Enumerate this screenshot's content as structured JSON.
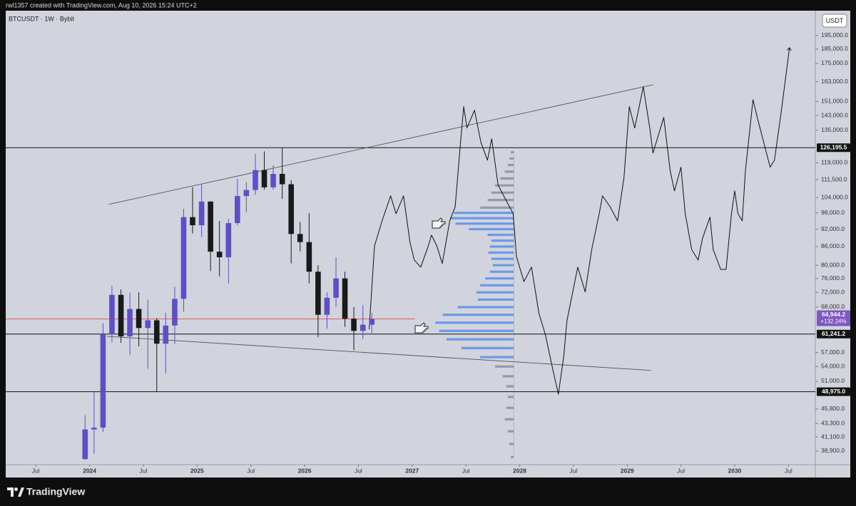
{
  "header": {
    "attribution": "rwl1357 created with TradingView.com, Aug 10, 2026 15:24 UTC+2",
    "symbol": "BTCUSDT · 1W · Bybit",
    "currency": "USDT"
  },
  "footer": {
    "brand": "TradingView"
  },
  "chart_data": {
    "type": "candlestick",
    "log_scale": true,
    "grid": false,
    "xlim": [
      2023.22,
      2030.75
    ],
    "ylim": [
      36900,
      214700
    ],
    "xticks": [
      {
        "value": 2023.5,
        "label": "Jul"
      },
      2024,
      {
        "value": 2024.5,
        "label": "Jul"
      },
      2025,
      {
        "value": 2025.5,
        "label": "Jul"
      },
      2026,
      {
        "value": 2026.5,
        "label": "Jul"
      },
      2027,
      {
        "value": 2027.5,
        "label": "Jul"
      },
      2028,
      {
        "value": 2028.5,
        "label": "Jul"
      },
      2029,
      {
        "value": 2029.5,
        "label": "Jul"
      },
      2030,
      {
        "value": 2030.5,
        "label": "Jul"
      }
    ],
    "yticks": [
      {
        "value": 195000,
        "label": "195,000.0"
      },
      {
        "value": 185000,
        "label": "185,000.0"
      },
      {
        "value": 175000,
        "label": "175,000.0"
      },
      {
        "value": 163000,
        "label": "163,000.0"
      },
      {
        "value": 151000,
        "label": "151,000.0"
      },
      {
        "value": 143000,
        "label": "143,000.0"
      },
      {
        "value": 135000,
        "label": "135,000.0"
      },
      {
        "value": 119000,
        "label": "119,000.0"
      },
      {
        "value": 111500,
        "label": "111,500.0"
      },
      {
        "value": 104000,
        "label": "104,000.0"
      },
      {
        "value": 98000,
        "label": "98,000.0"
      },
      {
        "value": 92000,
        "label": "92,000.0"
      },
      {
        "value": 86000,
        "label": "86,000.0"
      },
      {
        "value": 80000,
        "label": "80,000.0"
      },
      {
        "value": 76000,
        "label": "76,000.0"
      },
      {
        "value": 72000,
        "label": "72,000.0"
      },
      {
        "value": 68000,
        "label": "68,000.0"
      },
      {
        "value": 57000,
        "label": "57,000.0"
      },
      {
        "value": 54000,
        "label": "54,000.0"
      },
      {
        "value": 51000,
        "label": "51,000.0"
      },
      {
        "value": 45800,
        "label": "45,800.0"
      },
      {
        "value": 43300,
        "label": "43,300.0"
      },
      {
        "value": 41100,
        "label": "41,100.0"
      },
      {
        "value": 38900,
        "label": "38,900.0"
      }
    ],
    "x": [
      2023.958,
      2024.042,
      2024.125,
      2024.208,
      2024.292,
      2024.375,
      2024.458,
      2024.542,
      2024.625,
      2024.708,
      2024.792,
      2024.875,
      2024.958,
      2025.042,
      2025.125,
      2025.208,
      2025.292,
      2025.375,
      2025.458,
      2025.542,
      2025.625,
      2025.708,
      2025.792,
      2025.875,
      2025.958,
      2026.042,
      2026.125,
      2026.208,
      2026.292,
      2026.375,
      2026.458,
      2026.542,
      2026.625
    ],
    "open": [
      37700,
      42300,
      42600,
      61200,
      71300,
      60700,
      67500,
      62700,
      64600,
      59000,
      63300,
      70200,
      96400,
      93400,
      102400,
      84300,
      82500,
      94200,
      104600,
      107100,
      115700,
      108200,
      114000,
      109500,
      90300,
      87500,
      78000,
      66000,
      70500,
      76000,
      65000,
      62000,
      63500
    ],
    "high": [
      44700,
      48900,
      63900,
      73800,
      72800,
      71900,
      72000,
      70000,
      65100,
      66500,
      73600,
      99600,
      108300,
      109400,
      102500,
      95000,
      95800,
      111900,
      110400,
      123200,
      124400,
      117900,
      126195.5,
      111200,
      94600,
      97900,
      80000,
      72000,
      82500,
      78000,
      68000,
      68500,
      66500
    ],
    "low": [
      37600,
      38500,
      41900,
      59300,
      59200,
      56500,
      58400,
      53500,
      49000,
      52600,
      58900,
      66800,
      90500,
      89200,
      78200,
      76600,
      74500,
      93300,
      98200,
      105100,
      107300,
      107200,
      103500,
      80600,
      84400,
      74500,
      60500,
      62500,
      68000,
      63000,
      57500,
      60000,
      61500
    ],
    "close": [
      42300,
      42600,
      61200,
      71300,
      60700,
      67500,
      62700,
      64600,
      59000,
      63300,
      70200,
      96400,
      93400,
      102400,
      84300,
      82500,
      94200,
      104600,
      107100,
      115700,
      108200,
      114000,
      109500,
      90300,
      87500,
      78000,
      66000,
      70500,
      76000,
      65000,
      62000,
      63500,
      64944.2
    ],
    "up_color": "#5e4fc7",
    "down_color": "#1a1a1a",
    "projection": {
      "color": "#111111",
      "x": [
        2026.6,
        2026.65,
        2026.72,
        2026.8,
        2026.85,
        2026.92,
        2026.98,
        2027.02,
        2027.08,
        2027.15,
        2027.18,
        2027.23,
        2027.28,
        2027.35,
        2027.4,
        2027.45,
        2027.48,
        2027.51,
        2027.58,
        2027.64,
        2027.7,
        2027.74,
        2027.8,
        2027.87,
        2027.94,
        2027.97,
        2028.04,
        2028.11,
        2028.18,
        2028.24,
        2028.31,
        2028.36,
        2028.41,
        2028.44,
        2028.54,
        2028.61,
        2028.67,
        2028.74,
        2028.77,
        2028.84,
        2028.91,
        2028.97,
        2029.02,
        2029.07,
        2029.15,
        2029.21,
        2029.24,
        2029.29,
        2029.34,
        2029.4,
        2029.44,
        2029.5,
        2029.54,
        2029.6,
        2029.66,
        2029.7,
        2029.77,
        2029.8,
        2029.87,
        2029.92,
        2029.97,
        2030.0,
        2030.03,
        2030.07,
        2030.1,
        2030.17,
        2030.21,
        2030.27,
        2030.33,
        2030.37,
        2030.43,
        2030.51
      ],
      "values": [
        62400,
        86200,
        95000,
        104700,
        97700,
        104700,
        87500,
        81600,
        79400,
        86200,
        89900,
        86200,
        80500,
        95000,
        100400,
        128800,
        148000,
        136200,
        145900,
        128800,
        120200,
        130600,
        109100,
        103200,
        97700,
        82700,
        75100,
        79400,
        66300,
        61000,
        53200,
        48500,
        56200,
        64500,
        79400,
        72100,
        85000,
        97700,
        104700,
        100400,
        95000,
        112200,
        148000,
        136200,
        159800,
        136200,
        123600,
        132400,
        141900,
        115400,
        106700,
        117000,
        97700,
        85000,
        81600,
        88700,
        96400,
        85000,
        78700,
        78700,
        97700,
        106700,
        97700,
        95000,
        115400,
        152000,
        141900,
        128800,
        117000,
        120200,
        143900,
        186000
      ]
    },
    "trend_lines": [
      {
        "x": [
          2024.18,
          2029.24
        ],
        "values": [
          101300,
          161100
        ]
      },
      {
        "x": [
          2024.16,
          2029.22
        ],
        "values": [
          60700,
          53200
        ]
      }
    ],
    "levels": [
      {
        "value": 126195.5,
        "label": "126,195.5"
      },
      {
        "value": 61241.2,
        "label": "61,241.2"
      },
      {
        "value": 48975.0,
        "label": "48,975.0"
      }
    ],
    "current_price": {
      "value": 64944.2,
      "label": "64,944.2",
      "change": 132.24,
      "change_label": "+132.24%",
      "color": "#e53935",
      "label_color": "#7e57c2"
    },
    "volume_profile": {
      "x_right": 2027.945,
      "color": "#8a8f99",
      "value_area": {
        "low": 56000,
        "high": 98000,
        "color": "#5b8def"
      },
      "prices": [
        124000,
        121000,
        118000,
        115000,
        112000,
        109000,
        106000,
        103000,
        100000,
        98000,
        96000,
        94000,
        92000,
        90000,
        88000,
        86000,
        84000,
        82000,
        80000,
        78000,
        76000,
        74000,
        72000,
        70000,
        68000,
        66000,
        64000,
        62000,
        60000,
        58000,
        56000,
        54000,
        52000,
        50000,
        48000,
        46000,
        44000,
        42000,
        40000,
        38000
      ],
      "volumes": [
        4,
        6,
        8,
        12,
        18,
        25,
        30,
        35,
        45,
        80,
        85,
        78,
        60,
        35,
        30,
        32,
        34,
        30,
        28,
        32,
        38,
        45,
        50,
        48,
        75,
        95,
        105,
        100,
        90,
        70,
        45,
        25,
        15,
        10,
        8,
        10,
        12,
        8,
        6,
        4
      ]
    }
  }
}
